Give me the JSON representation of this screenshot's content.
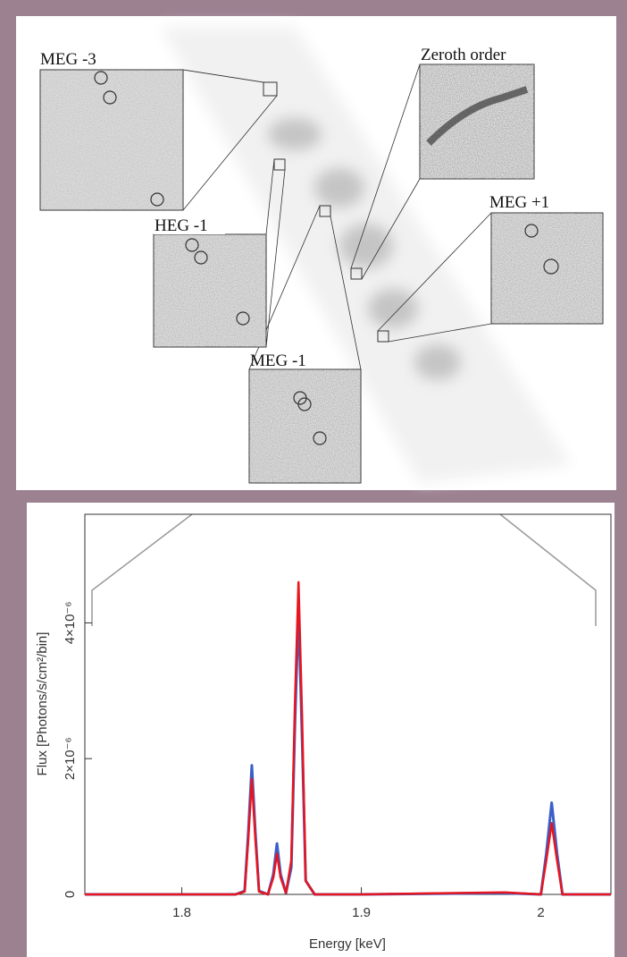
{
  "image_panel": {
    "labels": [
      "MEG -3",
      "Zeroth order",
      "HEG -1",
      "MEG +1",
      "MEG -1"
    ]
  },
  "chart_data": {
    "type": "line",
    "x_label": "Energy [keV]",
    "y_label": "Flux [Photons/s/cm²/bin]",
    "x": [
      1.746,
      1.83,
      1.835,
      1.837,
      1.839,
      1.841,
      1.843,
      1.848,
      1.851,
      1.853,
      1.855,
      1.858,
      1.861,
      1.863,
      1.865,
      1.867,
      1.869,
      1.874,
      1.9,
      1.98,
      2.0,
      2.003,
      2.006,
      2.009,
      2.012,
      2.039
    ],
    "series": [
      {
        "color": "#3a5fc8",
        "values": [
          0,
          0,
          5e-08,
          9e-07,
          1.9e-06,
          9e-07,
          5e-08,
          0,
          3e-07,
          7.5e-07,
          3e-07,
          2e-08,
          4e-07,
          2.5e-06,
          4.2e-06,
          2.3e-06,
          2e-07,
          0,
          0,
          2e-08,
          0,
          6e-07,
          1.35e-06,
          6e-07,
          0,
          0
        ]
      },
      {
        "color": "#e8141e",
        "values": [
          0,
          0,
          4e-08,
          8e-07,
          1.7e-06,
          8e-07,
          4e-08,
          0,
          2.5e-07,
          6e-07,
          2.5e-07,
          2e-08,
          5e-07,
          2.8e-06,
          4.6e-06,
          2.6e-06,
          2e-07,
          0,
          0,
          3e-08,
          0,
          5e-07,
          1.05e-06,
          5e-07,
          0,
          0
        ]
      }
    ],
    "xlim": [
      1.746,
      2.039
    ],
    "ylim": [
      0,
      5.6e-06
    ],
    "xticks": [
      1.8,
      1.9,
      2
    ],
    "yticks": [
      0,
      {
        "value": 2e-06,
        "label": "2×10⁻⁶"
      },
      {
        "value": 4e-06,
        "label": "4×10⁻⁶"
      }
    ]
  }
}
